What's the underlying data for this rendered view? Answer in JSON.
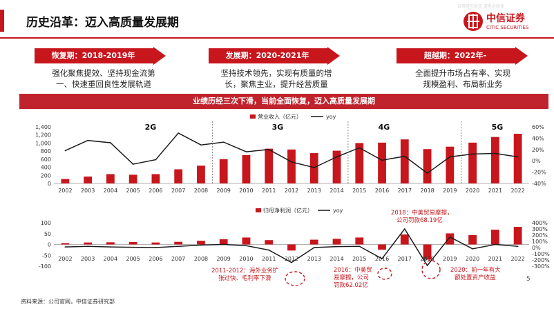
{
  "header": {
    "title": "历史沿革：迈入高质量发展期",
    "logo_cn": "中信证券",
    "logo_en": "CITIC SECURITIES",
    "watermark": "证券研究报告 请务必阅读"
  },
  "phases": [
    {
      "label": "恢复期：2018-2019年",
      "desc_line1": "强化聚焦提效、坚持现金流第",
      "desc_line2": "一、快速重回良性发展轨道"
    },
    {
      "label": "发展期：2020-2021年",
      "desc_line1": "坚持技术领先，实现有质量的增",
      "desc_line2": "长，聚焦主业，提升经营质量"
    },
    {
      "label": "超越期：2022年-",
      "desc_line1": "全面提升市场占有率、实现",
      "desc_line2": "规模盈利、布局新业务"
    }
  ],
  "banner": "业绩历经三次下滑，当前全面恢复，迈入高质量发展期",
  "colors": {
    "accent": "#c8161d",
    "bar": "#c8161d",
    "line": "#1a1a1a"
  },
  "eras": [
    "2G",
    "3G",
    "4G",
    "5G"
  ],
  "annotations": [
    {
      "line1": "2011-2012：海外业务扩",
      "line2": "张过快、毛利率下滑"
    },
    {
      "line1": "2016：中美贸",
      "line2": "易摩擦，公司",
      "line3": "罚款62.02亿"
    },
    {
      "line1": "2018：中美贸易摩擦，",
      "line2": "公司罚款68.19亿"
    },
    {
      "line1": "2020：前一年有大",
      "line2": "额处置资产收益"
    }
  ],
  "footer": {
    "source": "资料来源：公司官网，中信证券研究部",
    "page": "5"
  },
  "chart_data": [
    {
      "type": "bar",
      "legend": [
        "营业收入（亿元）",
        "yoy"
      ],
      "categories": [
        "2002",
        "2003",
        "2004",
        "2005",
        "2006",
        "2007",
        "2008",
        "2009",
        "2010",
        "2011",
        "2012",
        "2013",
        "2014",
        "2015",
        "2016",
        "2017",
        "2018",
        "2019",
        "2020",
        "2021",
        "2022"
      ],
      "series": [
        {
          "name": "营业收入（亿元）",
          "type": "bar",
          "axis": "left",
          "values": [
            110,
            170,
            230,
            215,
            230,
            350,
            440,
            600,
            700,
            860,
            840,
            750,
            810,
            1000,
            1010,
            1090,
            850,
            910,
            1010,
            1150,
            1230
          ]
        },
        {
          "name": "yoy",
          "type": "line",
          "axis": "right",
          "values": [
            18,
            36,
            32,
            -6,
            2,
            49,
            28,
            33,
            16,
            20,
            -2,
            -12,
            7,
            23,
            1,
            8,
            -22,
            7,
            12,
            13,
            7
          ]
        }
      ],
      "ylim_left": [
        0,
        1400
      ],
      "yticks_left": [
        "1,400",
        "1,200",
        "1,000",
        "800",
        "600",
        "400",
        "200",
        "0"
      ],
      "ylim_right": [
        -40,
        60
      ],
      "yticks_right": [
        "60%",
        "40%",
        "20%",
        "0%",
        "-20%",
        "-40%"
      ]
    },
    {
      "type": "bar",
      "legend": [
        "归母净利润（亿元）",
        "yoy"
      ],
      "categories": [
        "2002",
        "2003",
        "2004",
        "2005",
        "2006",
        "2007",
        "2008",
        "2009",
        "2010",
        "2011",
        "2012",
        "2013",
        "2014",
        "2015",
        "2016",
        "2017",
        "2018",
        "2019",
        "2020",
        "2021",
        "2022"
      ],
      "series": [
        {
          "name": "归母净利润（亿元）",
          "type": "bar",
          "axis": "left",
          "values": [
            6,
            9,
            10,
            11,
            9,
            12,
            17,
            24,
            32,
            20,
            -28,
            22,
            26,
            32,
            -24,
            46,
            -70,
            51,
            43,
            68,
            81
          ]
        },
        {
          "name": "yoy",
          "type": "line",
          "axis": "right",
          "values": [
            10,
            20,
            10,
            5,
            0,
            20,
            40,
            50,
            30,
            -40,
            -240,
            0,
            15,
            20,
            -180,
            300,
            -290,
            170,
            -20,
            50,
            20
          ]
        }
      ],
      "ylim_left": [
        -100,
        100
      ],
      "yticks_left": [
        "100",
        "50",
        "0",
        "-50",
        "-100"
      ],
      "ylim_right": [
        -300,
        400
      ],
      "yticks_right": [
        "400%",
        "300%",
        "200%",
        "100%",
        "0%",
        "-100%",
        "-200%",
        "-300%"
      ]
    }
  ]
}
